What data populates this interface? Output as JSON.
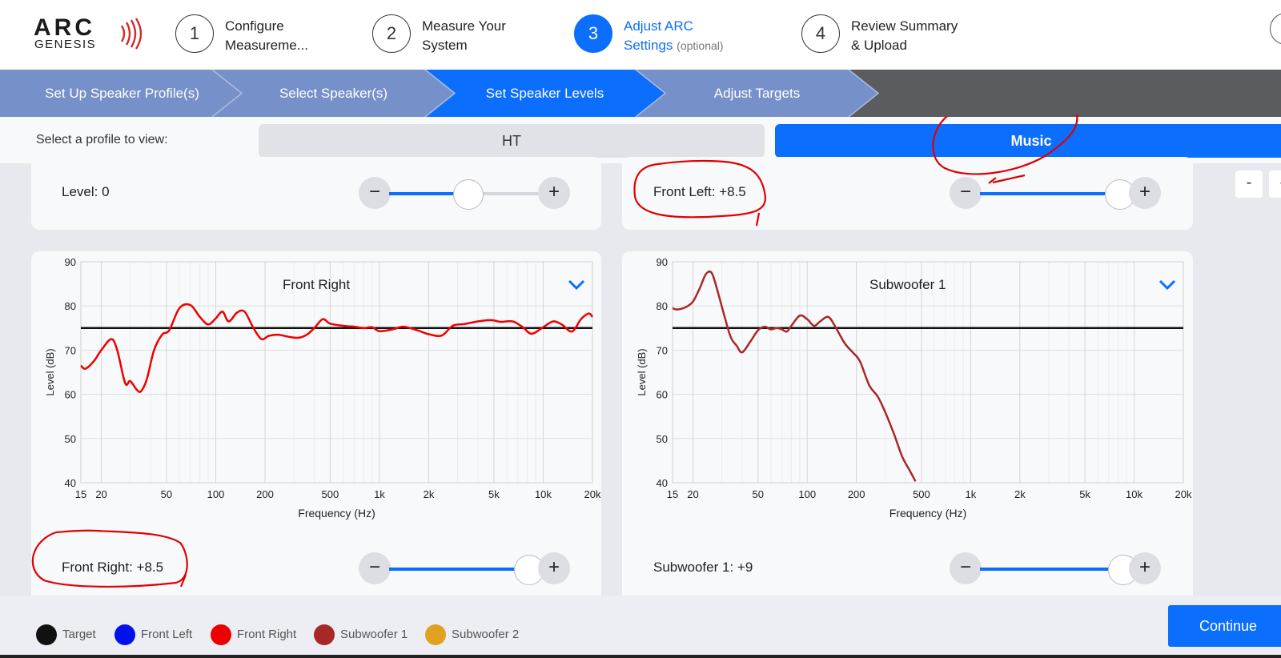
{
  "brand": {
    "name": "ARC",
    "sub": "GENESIS",
    "registered": "®"
  },
  "steps": [
    {
      "num": "1",
      "label": "Configure",
      "label2": "Measureme...",
      "optional": ""
    },
    {
      "num": "2",
      "label": "Measure Your",
      "label2": "System",
      "optional": ""
    },
    {
      "num": "3",
      "label": "Adjust ARC",
      "label2": "Settings",
      "optional": "(optional)"
    },
    {
      "num": "4",
      "label": "Review Summary",
      "label2": "& Upload",
      "optional": ""
    }
  ],
  "subtabs": [
    "Set Up Speaker Profile(s)",
    "Select Speaker(s)",
    "Set Speaker Levels",
    "Adjust Targets"
  ],
  "active_subtab": "Set Speaker Levels",
  "profile": {
    "prompt": "Select a profile to view:",
    "options": [
      "HT",
      "Music"
    ],
    "selected": "Music"
  },
  "levels": {
    "top_left": {
      "label": "Level: 0",
      "fill": 0.52
    },
    "top_right": {
      "label": "Front Left: +8.5",
      "fill": 0.92
    },
    "bottom_left": {
      "label": "Front Right: +8.5",
      "fill": 0.92
    },
    "bottom_right": {
      "label": "Subwoofer 1: +9",
      "fill": 0.94
    }
  },
  "side_buttons": [
    "-",
    "-"
  ],
  "colors": {
    "accent": "#0b6efd",
    "target": "#111111",
    "front_left": "#0011ee",
    "front_right": "#ee0000",
    "subwoofer_1": "#a82828",
    "subwoofer_2": "#e0a020",
    "subnav": "#7690c9",
    "annotation": "#e00000"
  },
  "chart_data": [
    {
      "type": "line",
      "title": "Front Right",
      "xlabel": "Frequency (Hz)",
      "ylabel": "Level (dB)",
      "xscale": "log",
      "xlim": [
        15,
        20000
      ],
      "ylim": [
        40,
        90
      ],
      "xticks": [
        15,
        20,
        50,
        100,
        200,
        500,
        1000,
        2000,
        5000,
        10000,
        20000
      ],
      "xtick_labels": [
        "15",
        "20",
        "50",
        "100",
        "200",
        "500",
        "1k",
        "2k",
        "5k",
        "10k",
        "20k"
      ],
      "yticks": [
        40,
        50,
        60,
        70,
        80,
        90
      ],
      "grid": true,
      "series": [
        {
          "name": "Target",
          "color": "#111111",
          "x": [
            15,
            20000
          ],
          "y": [
            75,
            75
          ]
        },
        {
          "name": "Front Right",
          "color": "#ee0000",
          "x": [
            15,
            16,
            18,
            20,
            23,
            25,
            28,
            30,
            33,
            35,
            38,
            42,
            47,
            52,
            60,
            70,
            80,
            90,
            100,
            110,
            120,
            135,
            150,
            170,
            190,
            210,
            240,
            280,
            320,
            360,
            400,
            450,
            500,
            600,
            700,
            800,
            900,
            1000,
            1200,
            1400,
            1700,
            2000,
            2400,
            2800,
            3300,
            4000,
            4800,
            5500,
            6500,
            7500,
            8500,
            10000,
            11500,
            13000,
            15000,
            17000,
            19000,
            20000
          ],
          "y": [
            66.5,
            65.8,
            67.5,
            70,
            72.5,
            70,
            62.5,
            63,
            61,
            60.7,
            63.5,
            70,
            73.5,
            74.5,
            79.5,
            80.2,
            77.5,
            75.8,
            77.2,
            78.7,
            76.5,
            78.5,
            78.7,
            75,
            72.5,
            73.2,
            73.5,
            73,
            72.8,
            73.5,
            75,
            77,
            76,
            75.5,
            75.3,
            75,
            75.2,
            74.3,
            74.7,
            75.3,
            74.5,
            73.6,
            73.3,
            75.5,
            75.9,
            76.5,
            76.8,
            76.4,
            76.5,
            75.2,
            73.7,
            75.2,
            76.5,
            75.8,
            74.2,
            77,
            78.3,
            77.5
          ]
        }
      ]
    },
    {
      "type": "line",
      "title": "Subwoofer 1",
      "xlabel": "Frequency (Hz)",
      "ylabel": "Level (dB)",
      "xscale": "log",
      "xlim": [
        15,
        20000
      ],
      "ylim": [
        40,
        90
      ],
      "xticks": [
        15,
        20,
        50,
        100,
        200,
        500,
        1000,
        2000,
        5000,
        10000,
        20000
      ],
      "xtick_labels": [
        "15",
        "20",
        "50",
        "100",
        "200",
        "500",
        "1k",
        "2k",
        "5k",
        "10k",
        "20k"
      ],
      "yticks": [
        40,
        50,
        60,
        70,
        80,
        90
      ],
      "grid": true,
      "series": [
        {
          "name": "Target",
          "color": "#111111",
          "x": [
            15,
            20000
          ],
          "y": [
            75,
            75
          ]
        },
        {
          "name": "Subwoofer 1",
          "color": "#a82828",
          "x": [
            15,
            16,
            18,
            20,
            22,
            24,
            26,
            28,
            31,
            34,
            37,
            40,
            45,
            50,
            55,
            60,
            65,
            70,
            75,
            80,
            90,
            100,
            110,
            120,
            135,
            150,
            170,
            190,
            210,
            240,
            270,
            300,
            340,
            380,
            420,
            460
          ],
          "y": [
            79.5,
            79.2,
            79.7,
            81,
            84,
            87.2,
            87.5,
            84,
            78,
            73,
            71,
            69.5,
            72,
            74.5,
            75.3,
            74.7,
            75,
            74.7,
            74.2,
            75.5,
            77.8,
            77,
            75.5,
            76.5,
            77.5,
            75,
            71.5,
            69.5,
            67.5,
            62,
            59.5,
            56,
            51,
            46,
            43,
            40.3
          ]
        }
      ]
    }
  ],
  "legend": [
    {
      "name": "Target",
      "color": "#111111"
    },
    {
      "name": "Front Left",
      "color": "#0011ee"
    },
    {
      "name": "Front Right",
      "color": "#ee0000"
    },
    {
      "name": "Subwoofer 1",
      "color": "#a82828"
    },
    {
      "name": "Subwoofer 2",
      "color": "#e0a020"
    }
  ],
  "footer": {
    "continue_label": "Continue"
  }
}
